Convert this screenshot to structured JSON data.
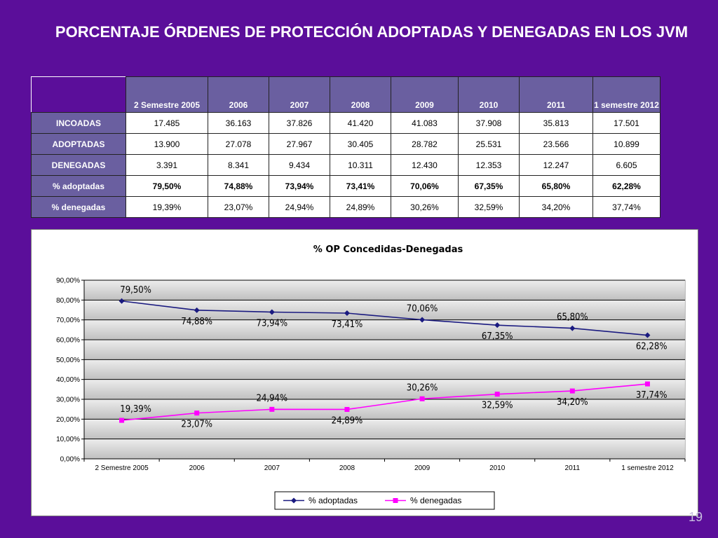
{
  "title": "PORCENTAJE  ÓRDENES DE PROTECCIÓN ADOPTADAS Y DENEGADAS EN LOS JVM",
  "page_number": "19",
  "table": {
    "headers": [
      "2 Semestre 2005",
      "2006",
      "2007",
      "2008",
      "2009",
      "2010",
      "2011",
      "1 semestre 2012"
    ],
    "rows": [
      {
        "label": "INCOADAS",
        "values": [
          "17.485",
          "36.163",
          "37.826",
          "41.420",
          "41.083",
          "37.908",
          "35.813",
          "17.501"
        ],
        "bold": false
      },
      {
        "label": "ADOPTADAS",
        "values": [
          "13.900",
          "27.078",
          "27.967",
          "30.405",
          "28.782",
          "25.531",
          "23.566",
          "10.899"
        ],
        "bold": false
      },
      {
        "label": "DENEGADAS",
        "values": [
          "3.391",
          "8.341",
          "9.434",
          "10.311",
          "12.430",
          "12.353",
          "12.247",
          "6.605"
        ],
        "bold": false
      },
      {
        "label": "% adoptadas",
        "values": [
          "79,50%",
          "74,88%",
          "73,94%",
          "73,41%",
          "70,06%",
          "67,35%",
          "65,80%",
          "62,28%"
        ],
        "bold": true
      },
      {
        "label": "% denegadas",
        "values": [
          "19,39%",
          "23,07%",
          "24,94%",
          "24,89%",
          "30,26%",
          "32,59%",
          "34,20%",
          "37,74%"
        ],
        "bold": false
      }
    ]
  },
  "chart_data": {
    "type": "line",
    "title": "% OP Concedidas-Denegadas",
    "categories": [
      "2 Semestre 2005",
      "2006",
      "2007",
      "2008",
      "2009",
      "2010",
      "2011",
      "1 semestre 2012"
    ],
    "ylim": [
      0,
      90
    ],
    "yticks": [
      "0,00%",
      "10,00%",
      "20,00%",
      "30,00%",
      "40,00%",
      "50,00%",
      "60,00%",
      "70,00%",
      "80,00%",
      "90,00%"
    ],
    "grid": true,
    "legend": "bottom",
    "series": [
      {
        "name": "% adoptadas",
        "color": "#1a1a80",
        "marker": "diamond",
        "values": [
          79.5,
          74.88,
          73.94,
          73.41,
          70.06,
          67.35,
          65.8,
          62.28
        ],
        "labels": [
          "79,50%",
          "74,88%",
          "73,94%",
          "73,41%",
          "70,06%",
          "67,35%",
          "65,80%",
          "62,28%"
        ],
        "label_pos": [
          "above",
          "below",
          "below",
          "below",
          "above",
          "below",
          "above",
          "below"
        ]
      },
      {
        "name": "% denegadas",
        "color": "#ff00ff",
        "marker": "square",
        "values": [
          19.39,
          23.07,
          24.94,
          24.89,
          30.26,
          32.59,
          34.2,
          37.74
        ],
        "labels": [
          "19,39%",
          "23,07%",
          "24,94%",
          "24,89%",
          "30,26%",
          "32,59%",
          "34,20%",
          "37,74%"
        ],
        "label_pos": [
          "above",
          "below",
          "above",
          "below",
          "above",
          "below",
          "below",
          "below"
        ]
      }
    ]
  }
}
